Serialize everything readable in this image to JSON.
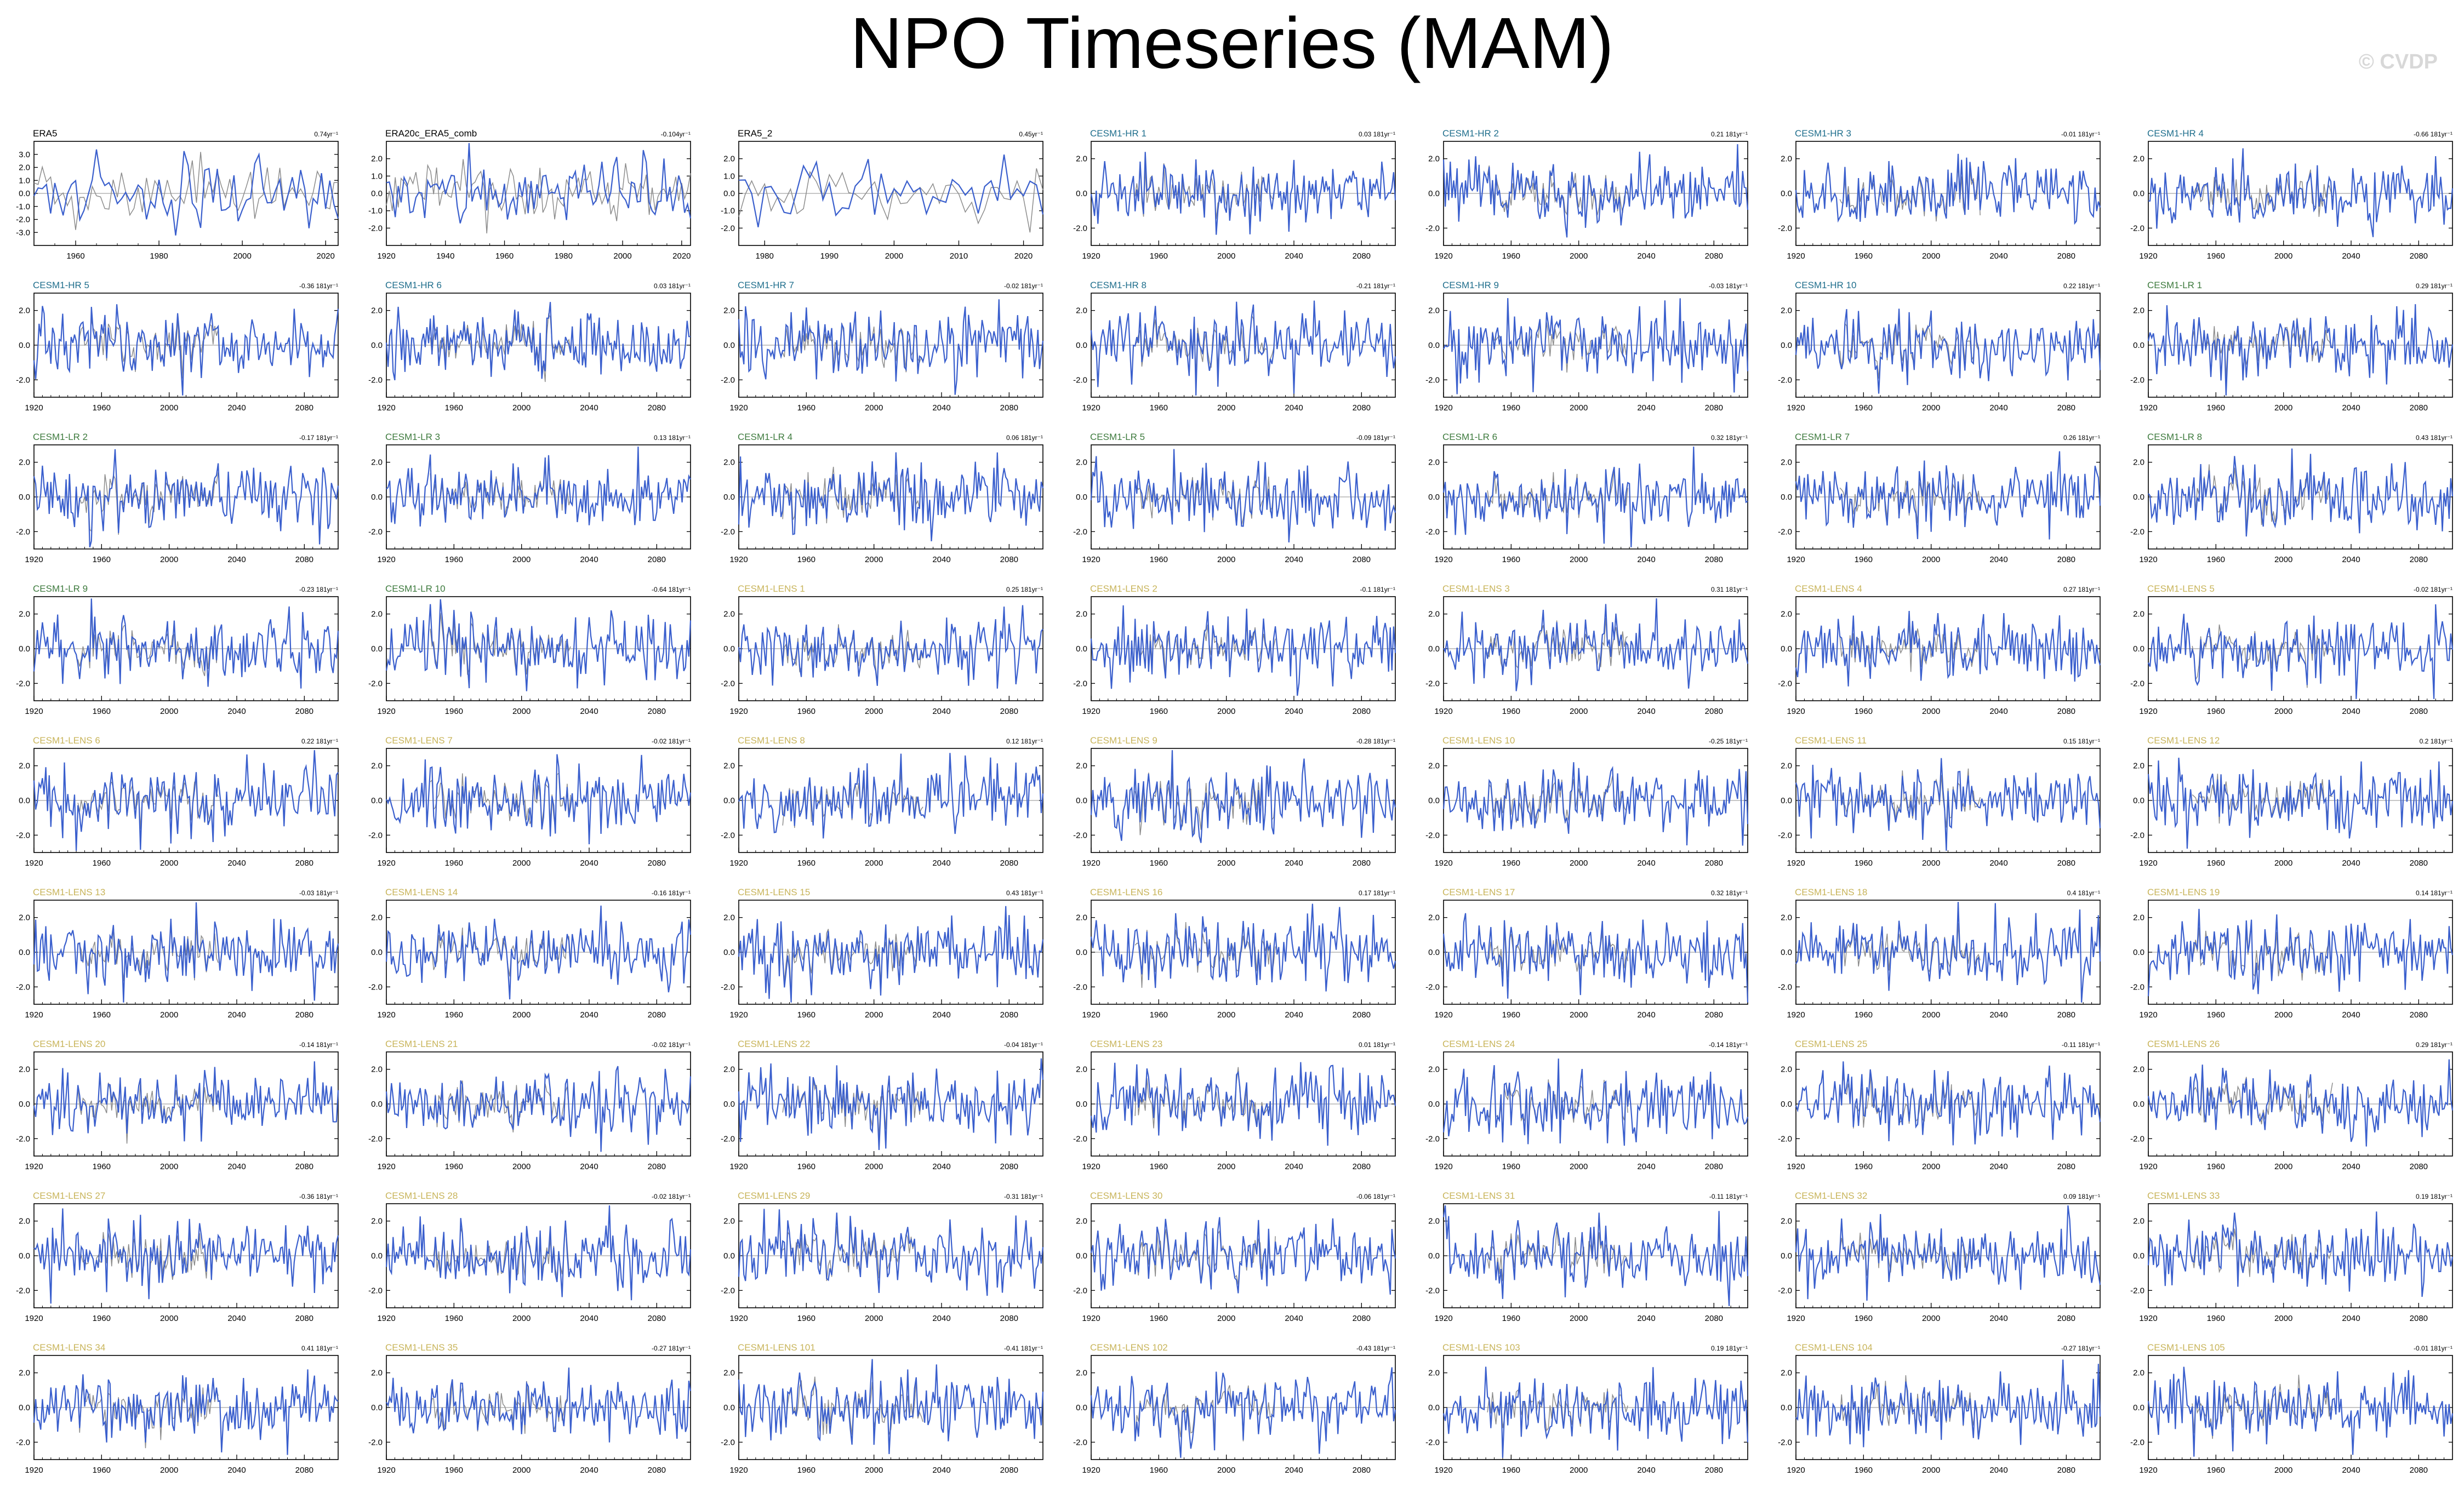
{
  "page": {
    "title": "NPO Timeseries (MAM)",
    "watermark": "© CVDP"
  },
  "colors": {
    "series_line": "#3a5fcd",
    "mean_line": "#8c8c8c",
    "title_obs": "#000000",
    "title_hr": "#1f6e8c",
    "title_lr": "#3d7a3d",
    "title_lens": "#c8b45a"
  },
  "chart_data": [
    {
      "type": "line",
      "title": "ERA5",
      "trend": "0.74yr⁻¹",
      "group": "obs",
      "years": [
        1950,
        2023
      ],
      "xticks": [
        1960,
        1980,
        2000,
        2020
      ],
      "yticks": [
        3,
        2,
        1,
        0,
        -1,
        -2,
        -3
      ],
      "seed": 11
    },
    {
      "type": "line",
      "title": "ERA20c_ERA5_comb",
      "trend": "-0.104yr⁻¹",
      "group": "obs",
      "years": [
        1920,
        2023
      ],
      "xticks": [
        1920,
        1940,
        1960,
        1980,
        2000,
        2020
      ],
      "yticks": [
        2,
        1,
        0,
        -1,
        -2
      ],
      "seed": 12
    },
    {
      "type": "line",
      "title": "ERA5_2",
      "trend": "0.45yr⁻¹",
      "group": "obs",
      "years": [
        1976,
        2023
      ],
      "xticks": [
        1980,
        1990,
        2000,
        2010,
        2020
      ],
      "yticks": [
        2,
        1,
        0,
        -1,
        -2
      ],
      "seed": 13
    },
    {
      "type": "line",
      "title": "CESM1-HR 1",
      "trend": "0.03 181yr⁻¹",
      "group": "hr",
      "seed": 21
    },
    {
      "type": "line",
      "title": "CESM1-HR 2",
      "trend": "0.21 181yr⁻¹",
      "group": "hr",
      "seed": 22
    },
    {
      "type": "line",
      "title": "CESM1-HR 3",
      "trend": "-0.01 181yr⁻¹",
      "group": "hr",
      "seed": 23
    },
    {
      "type": "line",
      "title": "CESM1-HR 4",
      "trend": "-0.66 181yr⁻¹",
      "group": "hr",
      "seed": 24
    },
    {
      "type": "line",
      "title": "CESM1-HR 5",
      "trend": "-0.36 181yr⁻¹",
      "group": "hr",
      "seed": 25
    },
    {
      "type": "line",
      "title": "CESM1-HR 6",
      "trend": "0.03 181yr⁻¹",
      "group": "hr",
      "seed": 26
    },
    {
      "type": "line",
      "title": "CESM1-HR 7",
      "trend": "-0.02 181yr⁻¹",
      "group": "hr",
      "seed": 27
    },
    {
      "type": "line",
      "title": "CESM1-HR 8",
      "trend": "-0.21 181yr⁻¹",
      "group": "hr",
      "seed": 28
    },
    {
      "type": "line",
      "title": "CESM1-HR 9",
      "trend": "-0.03 181yr⁻¹",
      "group": "hr",
      "seed": 29
    },
    {
      "type": "line",
      "title": "CESM1-HR 10",
      "trend": "0.22 181yr⁻¹",
      "group": "hr",
      "seed": 30
    },
    {
      "type": "line",
      "title": "CESM1-LR 1",
      "trend": "0.29 181yr⁻¹",
      "group": "lr",
      "seed": 31
    },
    {
      "type": "line",
      "title": "CESM1-LR 2",
      "trend": "-0.17 181yr⁻¹",
      "group": "lr",
      "seed": 32
    },
    {
      "type": "line",
      "title": "CESM1-LR 3",
      "trend": "0.13 181yr⁻¹",
      "group": "lr",
      "seed": 33
    },
    {
      "type": "line",
      "title": "CESM1-LR 4",
      "trend": "0.06 181yr⁻¹",
      "group": "lr",
      "seed": 34
    },
    {
      "type": "line",
      "title": "CESM1-LR 5",
      "trend": "-0.09 181yr⁻¹",
      "group": "lr",
      "seed": 35
    },
    {
      "type": "line",
      "title": "CESM1-LR 6",
      "trend": "0.32 181yr⁻¹",
      "group": "lr",
      "seed": 36
    },
    {
      "type": "line",
      "title": "CESM1-LR 7",
      "trend": "0.26 181yr⁻¹",
      "group": "lr",
      "seed": 37
    },
    {
      "type": "line",
      "title": "CESM1-LR 8",
      "trend": "0.43 181yr⁻¹",
      "group": "lr",
      "seed": 38
    },
    {
      "type": "line",
      "title": "CESM1-LR 9",
      "trend": "-0.23 181yr⁻¹",
      "group": "lr",
      "seed": 39
    },
    {
      "type": "line",
      "title": "CESM1-LR 10",
      "trend": "-0.64 181yr⁻¹",
      "group": "lr",
      "seed": 40
    },
    {
      "type": "line",
      "title": "CESM1-LENS 1",
      "trend": "0.25 181yr⁻¹",
      "group": "lens",
      "seed": 41
    },
    {
      "type": "line",
      "title": "CESM1-LENS 2",
      "trend": "-0.1 181yr⁻¹",
      "group": "lens",
      "seed": 42
    },
    {
      "type": "line",
      "title": "CESM1-LENS 3",
      "trend": "0.31 181yr⁻¹",
      "group": "lens",
      "seed": 43
    },
    {
      "type": "line",
      "title": "CESM1-LENS 4",
      "trend": "0.27 181yr⁻¹",
      "group": "lens",
      "seed": 44
    },
    {
      "type": "line",
      "title": "CESM1-LENS 5",
      "trend": "-0.02 181yr⁻¹",
      "group": "lens",
      "seed": 45
    },
    {
      "type": "line",
      "title": "CESM1-LENS 6",
      "trend": "0.22 181yr⁻¹",
      "group": "lens",
      "seed": 46
    },
    {
      "type": "line",
      "title": "CESM1-LENS 7",
      "trend": "-0.02 181yr⁻¹",
      "group": "lens",
      "seed": 47
    },
    {
      "type": "line",
      "title": "CESM1-LENS 8",
      "trend": "0.12 181yr⁻¹",
      "group": "lens",
      "seed": 48
    },
    {
      "type": "line",
      "title": "CESM1-LENS 9",
      "trend": "-0.28 181yr⁻¹",
      "group": "lens",
      "seed": 49
    },
    {
      "type": "line",
      "title": "CESM1-LENS 10",
      "trend": "-0.25 181yr⁻¹",
      "group": "lens",
      "seed": 50
    },
    {
      "type": "line",
      "title": "CESM1-LENS 11",
      "trend": "0.15 181yr⁻¹",
      "group": "lens",
      "seed": 51
    },
    {
      "type": "line",
      "title": "CESM1-LENS 12",
      "trend": "0.2 181yr⁻¹",
      "group": "lens",
      "seed": 52
    },
    {
      "type": "line",
      "title": "CESM1-LENS 13",
      "trend": "-0.03 181yr⁻¹",
      "group": "lens",
      "seed": 53
    },
    {
      "type": "line",
      "title": "CESM1-LENS 14",
      "trend": "-0.16 181yr⁻¹",
      "group": "lens",
      "seed": 54
    },
    {
      "type": "line",
      "title": "CESM1-LENS 15",
      "trend": "0.43 181yr⁻¹",
      "group": "lens",
      "seed": 55
    },
    {
      "type": "line",
      "title": "CESM1-LENS 16",
      "trend": "0.17 181yr⁻¹",
      "group": "lens",
      "seed": 56
    },
    {
      "type": "line",
      "title": "CESM1-LENS 17",
      "trend": "0.32 181yr⁻¹",
      "group": "lens",
      "seed": 57
    },
    {
      "type": "line",
      "title": "CESM1-LENS 18",
      "trend": "0.4 181yr⁻¹",
      "group": "lens",
      "seed": 58
    },
    {
      "type": "line",
      "title": "CESM1-LENS 19",
      "trend": "0.14 181yr⁻¹",
      "group": "lens",
      "seed": 59
    },
    {
      "type": "line",
      "title": "CESM1-LENS 20",
      "trend": "-0.14 181yr⁻¹",
      "group": "lens",
      "seed": 60
    },
    {
      "type": "line",
      "title": "CESM1-LENS 21",
      "trend": "-0.02 181yr⁻¹",
      "group": "lens",
      "seed": 61
    },
    {
      "type": "line",
      "title": "CESM1-LENS 22",
      "trend": "-0.04 181yr⁻¹",
      "group": "lens",
      "seed": 62
    },
    {
      "type": "line",
      "title": "CESM1-LENS 23",
      "trend": "0.01 181yr⁻¹",
      "group": "lens",
      "seed": 63
    },
    {
      "type": "line",
      "title": "CESM1-LENS 24",
      "trend": "-0.14 181yr⁻¹",
      "group": "lens",
      "seed": 64
    },
    {
      "type": "line",
      "title": "CESM1-LENS 25",
      "trend": "-0.11 181yr⁻¹",
      "group": "lens",
      "seed": 65
    },
    {
      "type": "line",
      "title": "CESM1-LENS 26",
      "trend": "0.29 181yr⁻¹",
      "group": "lens",
      "seed": 66
    },
    {
      "type": "line",
      "title": "CESM1-LENS 27",
      "trend": "-0.36 181yr⁻¹",
      "group": "lens",
      "seed": 67
    },
    {
      "type": "line",
      "title": "CESM1-LENS 28",
      "trend": "-0.02 181yr⁻¹",
      "group": "lens",
      "seed": 68
    },
    {
      "type": "line",
      "title": "CESM1-LENS 29",
      "trend": "-0.31 181yr⁻¹",
      "group": "lens",
      "seed": 69
    },
    {
      "type": "line",
      "title": "CESM1-LENS 30",
      "trend": "-0.06 181yr⁻¹",
      "group": "lens",
      "seed": 70
    },
    {
      "type": "line",
      "title": "CESM1-LENS 31",
      "trend": "-0.11 181yr⁻¹",
      "group": "lens",
      "seed": 71
    },
    {
      "type": "line",
      "title": "CESM1-LENS 32",
      "trend": "0.09 181yr⁻¹",
      "group": "lens",
      "seed": 72
    },
    {
      "type": "line",
      "title": "CESM1-LENS 33",
      "trend": "0.19 181yr⁻¹",
      "group": "lens",
      "seed": 73
    },
    {
      "type": "line",
      "title": "CESM1-LENS 34",
      "trend": "0.41 181yr⁻¹",
      "group": "lens",
      "seed": 74
    },
    {
      "type": "line",
      "title": "CESM1-LENS 35",
      "trend": "-0.27 181yr⁻¹",
      "group": "lens",
      "seed": 75
    },
    {
      "type": "line",
      "title": "CESM1-LENS 101",
      "trend": "-0.41 181yr⁻¹",
      "group": "lens",
      "seed": 76
    },
    {
      "type": "line",
      "title": "CESM1-LENS 102",
      "trend": "-0.43 181yr⁻¹",
      "group": "lens",
      "seed": 77
    },
    {
      "type": "line",
      "title": "CESM1-LENS 103",
      "trend": "0.19 181yr⁻¹",
      "group": "lens",
      "seed": 78
    },
    {
      "type": "line",
      "title": "CESM1-LENS 104",
      "trend": "-0.27 181yr⁻¹",
      "group": "lens",
      "seed": 79
    },
    {
      "type": "line",
      "title": "CESM1-LENS 105",
      "trend": "-0.01 181yr⁻¹",
      "group": "lens",
      "seed": 80
    }
  ],
  "model_defaults": {
    "years": [
      1920,
      2100
    ],
    "xticks": [
      1920,
      1960,
      2000,
      2040,
      2080
    ],
    "yticks": [
      2,
      0,
      -2
    ]
  }
}
